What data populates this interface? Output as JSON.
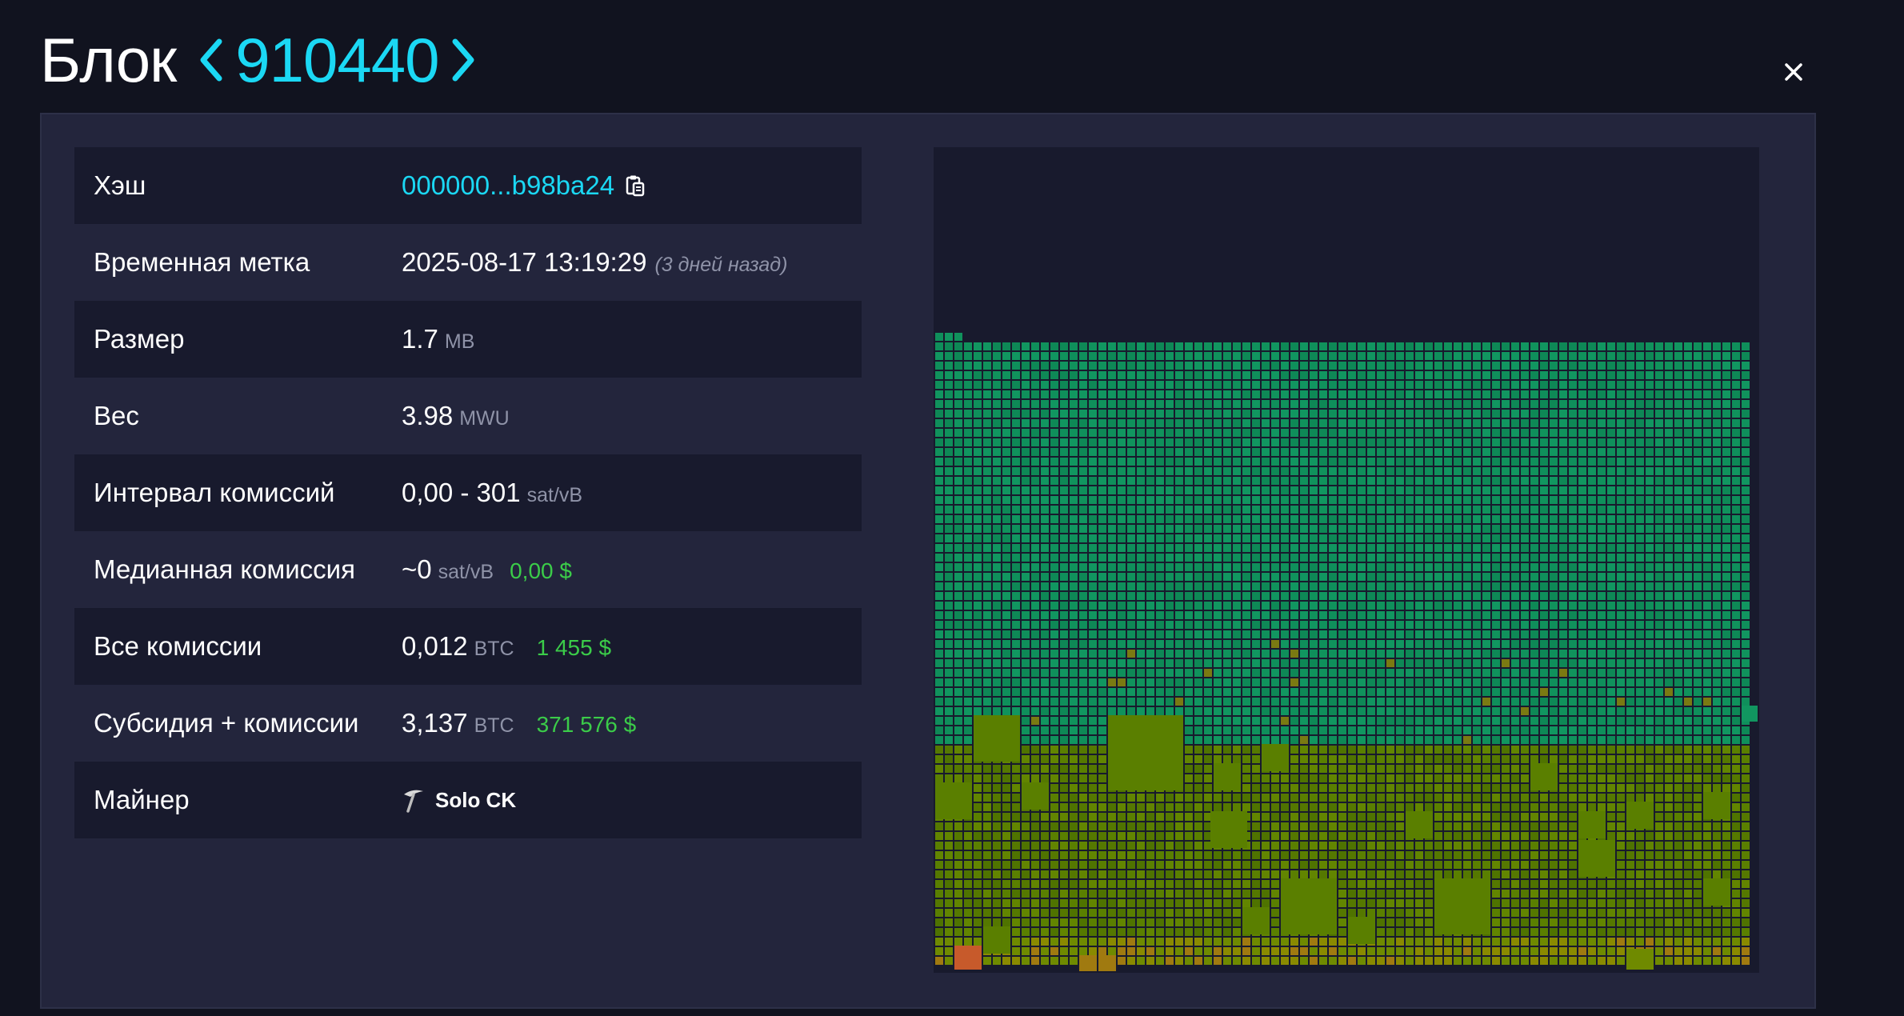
{
  "header": {
    "title": "Блок",
    "block_height": "910440",
    "prev_icon": "chevron-left-icon",
    "next_icon": "chevron-right-icon",
    "close_icon": "close-icon"
  },
  "details": {
    "hash": {
      "label": "Хэш",
      "value": "000000...b98ba24",
      "icon": "clipboard-icon"
    },
    "timestamp": {
      "label": "Временная метка",
      "value": "2025-08-17 13:19:29",
      "relative": "(3 дней назад)"
    },
    "size": {
      "label": "Размер",
      "value": "1.7",
      "unit": "MB"
    },
    "weight": {
      "label": "Вес",
      "value": "3.98",
      "unit": "MWU"
    },
    "fee_span": {
      "label": "Интервал комиссий",
      "value": "0,00 - 301",
      "unit": "sat/vB"
    },
    "median_fee": {
      "label": "Медианная комиссия",
      "value": "~0",
      "unit": "sat/vB",
      "fiat": "0,00 $"
    },
    "total_fees": {
      "label": "Все комиссии",
      "value": "0,012",
      "unit": "BTC",
      "fiat": "1 455 $"
    },
    "subsidy_fees": {
      "label": "Субсидия + комиссии",
      "value": "3,137",
      "unit": "BTC",
      "fiat": "371 576 $"
    },
    "miner": {
      "label": "Майнер",
      "value": "Solo CK",
      "icon": "pickaxe-icon"
    }
  },
  "colors": {
    "accent": "#1bd8f4",
    "fiat_green": "#3bcc49",
    "low_fee_tx": "#0f8f5b",
    "mid_fee_tx": "#5a7f00",
    "high_fee_tx": "#c75a2b"
  }
}
